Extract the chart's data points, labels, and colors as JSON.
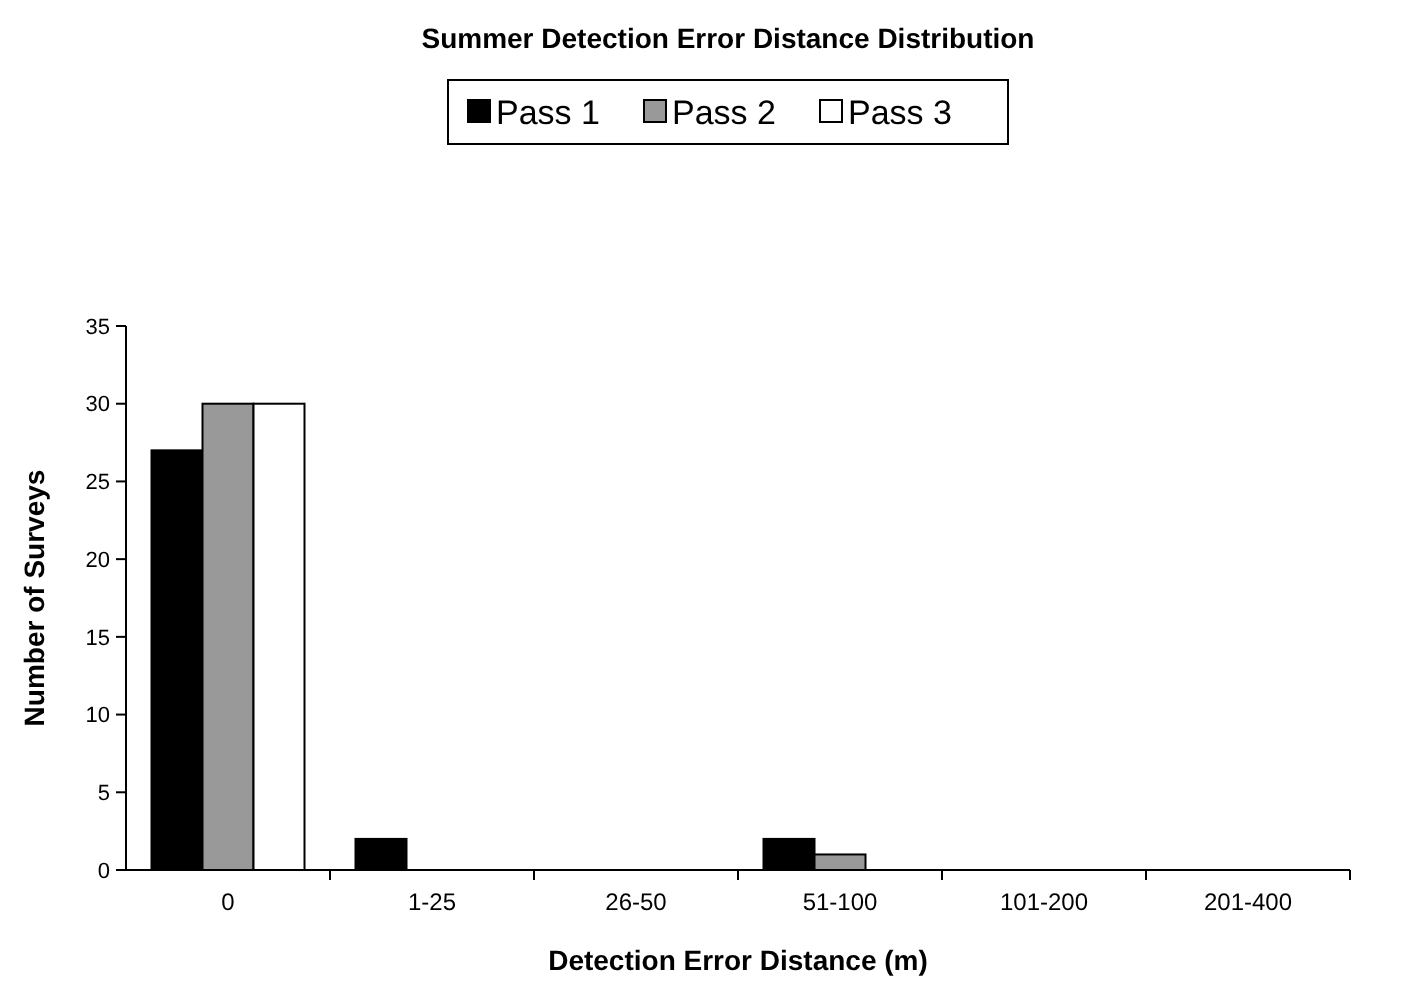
{
  "chart_data": {
    "type": "bar",
    "title": "Summer Detection Error Distance Distribution",
    "xlabel": "Detection Error Distance (m)",
    "ylabel": "Number of Surveys",
    "categories": [
      "0",
      "1-25",
      "26-50",
      "51-100",
      "101-200",
      "201-400"
    ],
    "series": [
      {
        "name": "Pass 1",
        "color": "#000000",
        "values": [
          27,
          2,
          0,
          2,
          0,
          0
        ]
      },
      {
        "name": "Pass 2",
        "color": "#999999",
        "values": [
          30,
          0,
          0,
          1,
          0,
          0
        ]
      },
      {
        "name": "Pass 3",
        "color": "#ffffff",
        "values": [
          30,
          0,
          0,
          0,
          0,
          0
        ]
      }
    ],
    "ylim": [
      0,
      35
    ],
    "yticks": [
      0,
      5,
      10,
      15,
      20,
      25,
      30,
      35
    ],
    "grid": false,
    "legend": "top"
  }
}
